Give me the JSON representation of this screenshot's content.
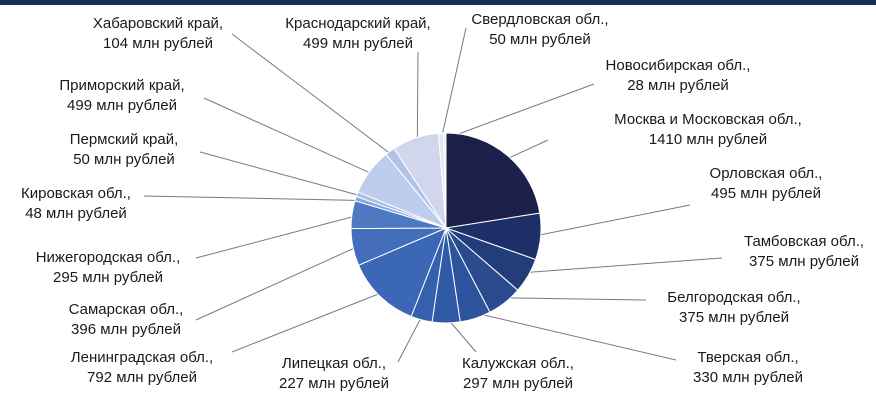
{
  "chart_data": {
    "type": "pie",
    "title": "",
    "slices": [
      {
        "region": "Москва и Московская обл.,",
        "value_text": "1410 млн рублей",
        "value": 1410,
        "color": "#1b1f4a"
      },
      {
        "region": "Орловская обл.,",
        "value_text": "495 млн рублей",
        "value": 495,
        "color": "#1c2f66"
      },
      {
        "region": "Тамбовская обл.,",
        "value_text": "375 млн рублей",
        "value": 375,
        "color": "#223d7a"
      },
      {
        "region": "Белгородская обл.,",
        "value_text": "375 млн рублей",
        "value": 375,
        "color": "#2a4b8e"
      },
      {
        "region": "Тверская обл.,",
        "value_text": "330 млн рублей",
        "value": 330,
        "color": "#2d539c"
      },
      {
        "region": "Калужская обл.,",
        "value_text": "297 млн рублей",
        "value": 297,
        "color": "#3059a6"
      },
      {
        "region": "Липецкая обл.,",
        "value_text": "227 млн рублей",
        "value": 227,
        "color": "#3560ae"
      },
      {
        "region": "Ленинградская обл.,",
        "value_text": "792 млн рублей",
        "value": 792,
        "color": "#3b67b6"
      },
      {
        "region": "Самарская обл.,",
        "value_text": "396 млн рублей",
        "value": 396,
        "color": "#426ebb"
      },
      {
        "region": "Нижегородская обл.,",
        "value_text": "295 млн рублей",
        "value": 295,
        "color": "#4d79c2"
      },
      {
        "region": "Кировская обл.,",
        "value_text": "48 млн рублей",
        "value": 48,
        "color": "#8aa8dc"
      },
      {
        "region": "Пермский край,",
        "value_text": "50 млн рублей",
        "value": 50,
        "color": "#a7bde6"
      },
      {
        "region": "Приморский край,",
        "value_text": "499 млн рублей",
        "value": 499,
        "color": "#bccdee"
      },
      {
        "region": "Хабаровский край,",
        "value_text": "104 млн рублей",
        "value": 104,
        "color": "#b0c2e8"
      },
      {
        "region": "Краснодарский край,",
        "value_text": "499 млн рублей",
        "value": 499,
        "color": "#d2d6ec"
      },
      {
        "region": "Свердловская обл.,",
        "value_text": "50 млн рублей",
        "value": 50,
        "color": "#e6e4f2"
      },
      {
        "region": "Новосибирская обл.,",
        "value_text": "28 млн рублей",
        "value": 28,
        "color": "#efeef6"
      }
    ]
  }
}
